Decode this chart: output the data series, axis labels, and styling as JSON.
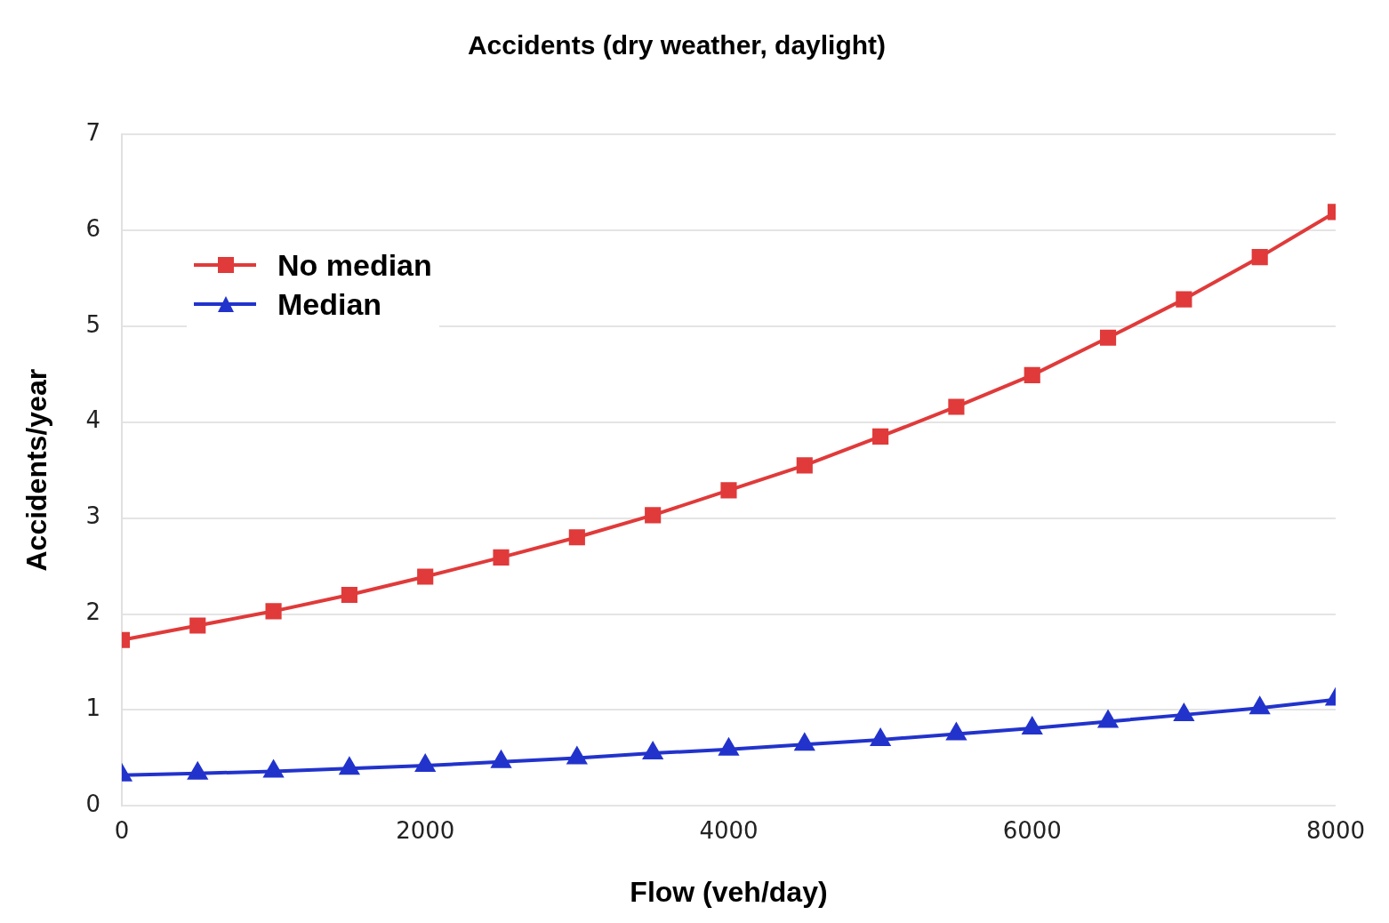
{
  "chart_data": {
    "type": "line",
    "title": "Accidents (dry weather, daylight)",
    "xlabel": "Flow (veh/day)",
    "ylabel": "Accidents/year",
    "x": [
      0,
      500,
      1000,
      1500,
      2000,
      2500,
      3000,
      3500,
      4000,
      4500,
      5000,
      5500,
      6000,
      6500,
      7000,
      7500,
      8000
    ],
    "series": [
      {
        "name": "No median",
        "color": "#e03a3a",
        "marker": "square",
        "values": [
          1.73,
          1.88,
          2.03,
          2.2,
          2.39,
          2.59,
          2.8,
          3.03,
          3.29,
          3.55,
          3.85,
          4.16,
          4.49,
          4.88,
          5.28,
          5.72,
          6.19
        ]
      },
      {
        "name": "Median",
        "color": "#2233cc",
        "marker": "triangle",
        "values": [
          0.32,
          0.34,
          0.36,
          0.39,
          0.42,
          0.46,
          0.5,
          0.55,
          0.59,
          0.64,
          0.69,
          0.75,
          0.81,
          0.88,
          0.95,
          1.02,
          1.11
        ]
      }
    ],
    "xlim": [
      0,
      8000
    ],
    "xticks": [
      0,
      2000,
      4000,
      6000,
      8000
    ],
    "ylim": [
      0,
      7
    ],
    "yticks": [
      0,
      1,
      2,
      3,
      4,
      5,
      6,
      7
    ],
    "grid": "y",
    "legend": "top left",
    "line_style": "solid"
  }
}
